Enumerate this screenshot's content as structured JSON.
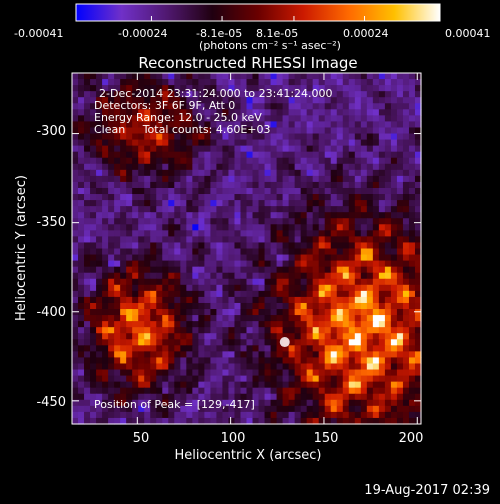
{
  "colorbar": {
    "tick_labels": [
      "-0.00041",
      "-0.00024",
      "-8.1e-05",
      "8.1e-05",
      "0.00024",
      "0.00041"
    ],
    "tick_values": [
      -0.00041,
      -0.00024,
      -8.1e-05,
      8.1e-05,
      0.00024,
      0.00041
    ],
    "range": [
      -0.00041,
      0.00041
    ],
    "unit_label": "(photons cm⁻² s⁻¹ asec⁻²)",
    "colors": [
      "#0000ff",
      "#7030c8",
      "#501870",
      "#200010",
      "#6a0000",
      "#cc1a00",
      "#ff6a00",
      "#ffc000",
      "#ffffff"
    ]
  },
  "chart_data": {
    "type": "heatmap",
    "title": "Reconstructed RHESSI Image",
    "xlabel": "Heliocentric X (arcsec)",
    "ylabel": "Heliocentric Y (arcsec)",
    "xlim": [
      15,
      202
    ],
    "ylim": [
      -463,
      -266
    ],
    "xticks": [
      50,
      100,
      150,
      200
    ],
    "yticks": [
      -300,
      -350,
      -400,
      -450
    ],
    "peak_position": [
      129,
      -417
    ],
    "info_lines": [
      "2-Dec-2014 23:31:24.000 to 23:41:24.000",
      "Detectors: 3F 6F 9F, Att 0",
      "Energy Range: 12.0 - 25.0 keV",
      "Clean     Total counts: 4.60E+03"
    ],
    "peak_text": "Position of Peak = [129,-417]"
  },
  "footer": {
    "timestamp": "19-Aug-2017 02:39"
  }
}
